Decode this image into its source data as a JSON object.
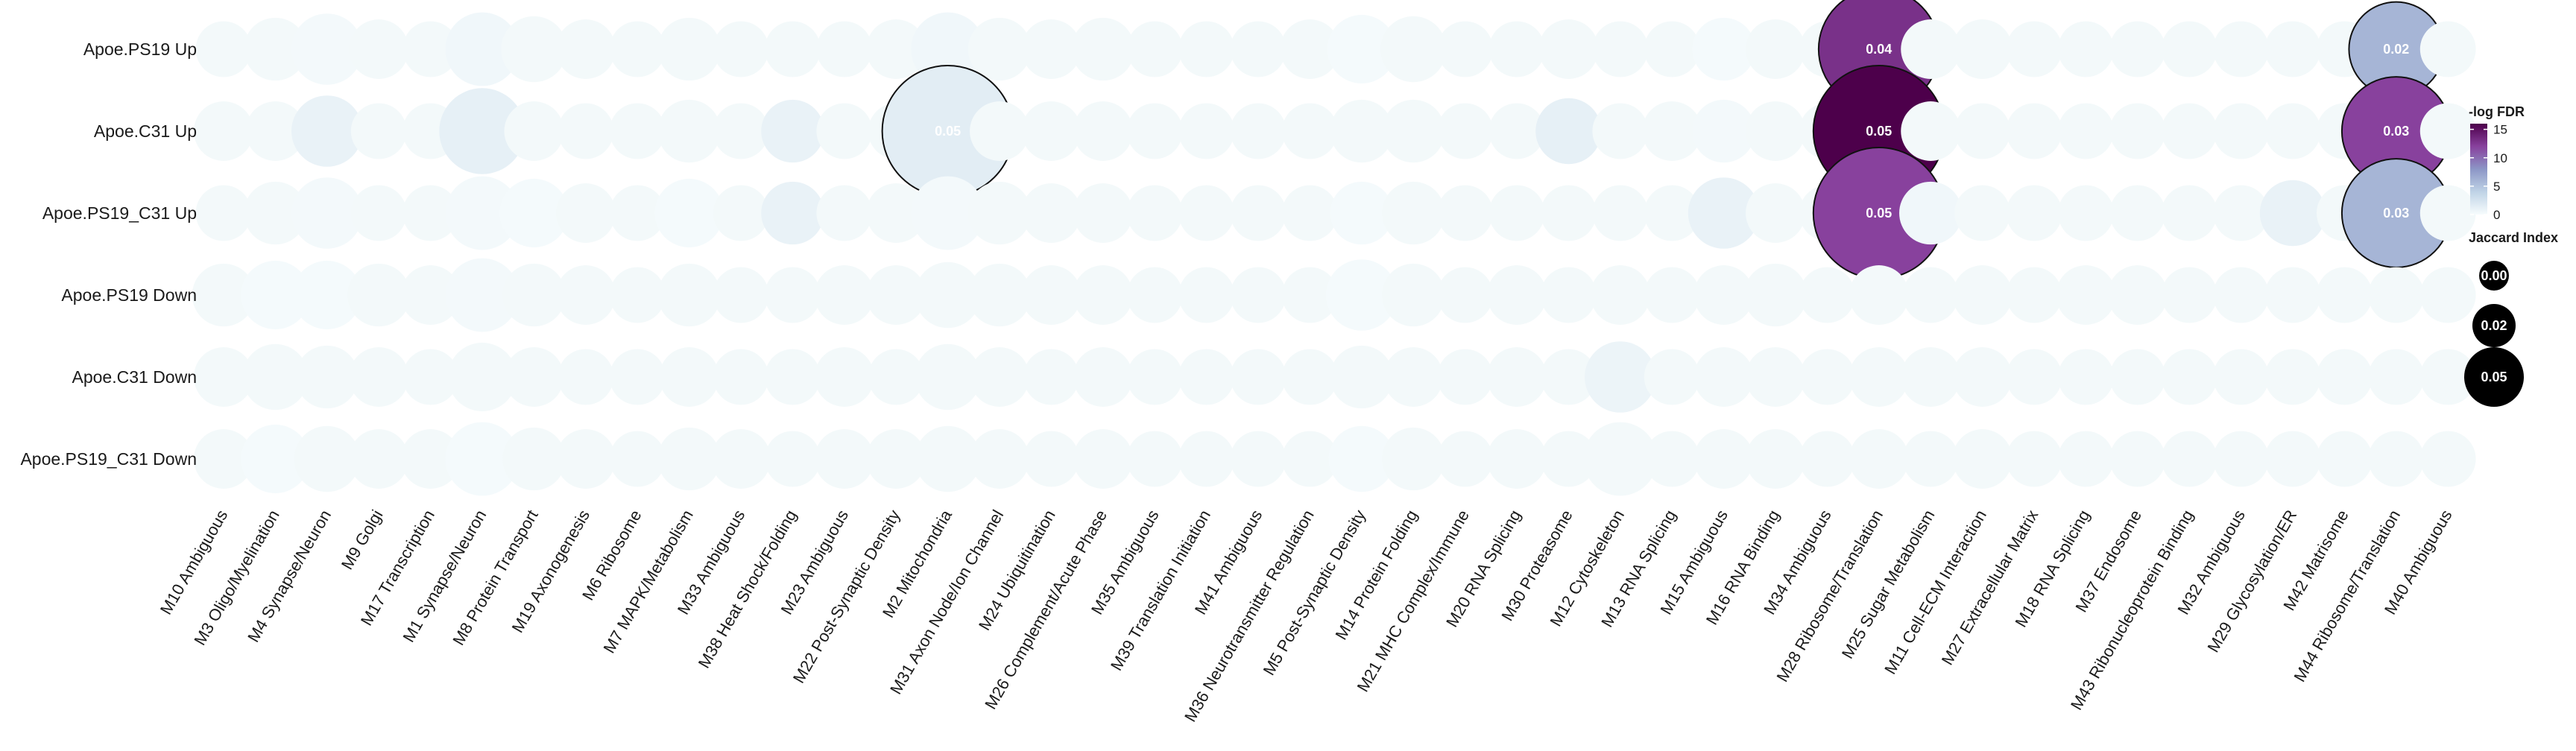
{
  "chart_data": {
    "type": "dot-matrix",
    "rows": [
      "Apoe.PS19 Up",
      "Apoe.C31 Up",
      "Apoe.PS19_C31 Up",
      "Apoe.PS19 Down",
      "Apoe.C31 Down",
      "Apoe.PS19_C31 Down"
    ],
    "columns": [
      "M10 Ambiguous",
      "M3 Oligo/Myelination",
      "M4 Synapse/Neuron",
      "M9 Golgi",
      "M17 Transcription",
      "M1 Synapse/Neuron",
      "M8 Protein Transport",
      "M19 Axonogenesis",
      "M6 Ribosome",
      "M7 MAPK/Metabolism",
      "M33 Ambiguous",
      "M38 Heat Shock/Folding",
      "M23 Ambiguous",
      "M22 Post-Synaptic Density",
      "M2 Mitochondria",
      "M31 Axon Node/Ion Channel",
      "M24 Ubiquitination",
      "M26 Complement/Acute Phase",
      "M35 Ambiguous",
      "M39 Translation Initiation",
      "M41 Ambiguous",
      "M36 Neurotransmitter Regulation",
      "M5 Post-Synaptic Density",
      "M14 Protein Folding",
      "M21 MHC Complex/Immune",
      "M20 RNA Splicing",
      "M30 Proteasome",
      "M12 Cytoskeleton",
      "M13 RNA Splicing",
      "M15 Ambiguous",
      "M16 RNA Binding",
      "M34 Ambiguous",
      "M28 Ribosome/Translation",
      "M25 Sugar Metabolism",
      "M11 Cell-ECM Interaction",
      "M27 Extracellular Matrix",
      "M18 RNA Splicing",
      "M37 Endosome",
      "M43 Ribonucleoprotein Binding",
      "M32 Ambiguous",
      "M29 Glycosylation/ER",
      "M42 Matrisome",
      "M44 Ribosome/Translation",
      "M40 Ambiguous"
    ],
    "jaccard": [
      [
        0.003,
        0.005,
        0.008,
        0.004,
        0.003,
        0.009,
        0.006,
        0.004,
        0.003,
        0.005,
        0.003,
        0.003,
        0.003,
        0.004,
        0.009,
        0.005,
        0.004,
        0.005,
        0.003,
        0.003,
        0.003,
        0.004,
        0.007,
        0.006,
        0.003,
        0.003,
        0.004,
        0.003,
        0.003,
        0.005,
        0.004,
        0.003,
        0.04,
        0.004,
        0.004,
        0.003,
        0.003,
        0.003,
        0.003,
        0.003,
        0.003,
        0.003,
        0.02,
        0.003
      ],
      [
        0.004,
        0.004,
        0.008,
        0.003,
        0.003,
        0.015,
        0.004,
        0.003,
        0.003,
        0.005,
        0.003,
        0.005,
        0.003,
        0.003,
        0.05,
        0.004,
        0.004,
        0.004,
        0.003,
        0.003,
        0.003,
        0.003,
        0.005,
        0.005,
        0.003,
        0.003,
        0.006,
        0.003,
        0.004,
        0.005,
        0.004,
        0.003,
        0.05,
        0.004,
        0.003,
        0.003,
        0.003,
        0.003,
        0.003,
        0.003,
        0.003,
        0.003,
        0.03,
        0.003
      ],
      [
        0.003,
        0.005,
        0.008,
        0.003,
        0.003,
        0.009,
        0.007,
        0.004,
        0.003,
        0.007,
        0.003,
        0.005,
        0.003,
        0.004,
        0.009,
        0.005,
        0.004,
        0.004,
        0.003,
        0.003,
        0.003,
        0.003,
        0.005,
        0.005,
        0.003,
        0.003,
        0.003,
        0.003,
        0.003,
        0.008,
        0.004,
        0.003,
        0.05,
        0.005,
        0.003,
        0.003,
        0.003,
        0.003,
        0.003,
        0.003,
        0.006,
        0.003,
        0.03,
        0.003
      ],
      [
        0.005,
        0.007,
        0.007,
        0.005,
        0.004,
        0.009,
        0.005,
        0.004,
        0.003,
        0.005,
        0.003,
        0.003,
        0.004,
        0.004,
        0.006,
        0.005,
        0.004,
        0.004,
        0.003,
        0.003,
        0.003,
        0.003,
        0.008,
        0.005,
        0.003,
        0.004,
        0.003,
        0.004,
        0.003,
        0.004,
        0.005,
        0.003,
        0.004,
        0.003,
        0.004,
        0.003,
        0.004,
        0.004,
        0.003,
        0.003,
        0.003,
        0.003,
        0.003,
        0.003
      ],
      [
        0.004,
        0.006,
        0.005,
        0.004,
        0.003,
        0.007,
        0.004,
        0.003,
        0.003,
        0.004,
        0.003,
        0.003,
        0.004,
        0.003,
        0.006,
        0.004,
        0.003,
        0.004,
        0.003,
        0.003,
        0.003,
        0.003,
        0.005,
        0.004,
        0.003,
        0.004,
        0.003,
        0.008,
        0.003,
        0.004,
        0.004,
        0.003,
        0.004,
        0.004,
        0.004,
        0.003,
        0.003,
        0.003,
        0.003,
        0.003,
        0.003,
        0.003,
        0.003,
        0.003
      ],
      [
        0.004,
        0.007,
        0.006,
        0.004,
        0.004,
        0.009,
        0.005,
        0.004,
        0.003,
        0.005,
        0.004,
        0.003,
        0.004,
        0.004,
        0.006,
        0.004,
        0.003,
        0.004,
        0.003,
        0.003,
        0.003,
        0.003,
        0.006,
        0.005,
        0.003,
        0.004,
        0.003,
        0.009,
        0.003,
        0.004,
        0.004,
        0.003,
        0.004,
        0.003,
        0.004,
        0.003,
        0.003,
        0.003,
        0.003,
        0.003,
        0.003,
        0.003,
        0.003,
        0.003
      ]
    ],
    "neg_log_fdr": [
      [
        0,
        0,
        0.3,
        0,
        0,
        0.5,
        0,
        0,
        0,
        0,
        0,
        0,
        0,
        0,
        0.5,
        0,
        0,
        0,
        0,
        0,
        0,
        0,
        0.2,
        0,
        0,
        0,
        0,
        0,
        0,
        0.2,
        0,
        0,
        13,
        0,
        0,
        0,
        0,
        0,
        0,
        0,
        0,
        0,
        6,
        0
      ],
      [
        0,
        0,
        1,
        0,
        0,
        1.2,
        0,
        0,
        0,
        0,
        0,
        1,
        0,
        0,
        1.5,
        0,
        0,
        0,
        0,
        0,
        0,
        0,
        0,
        0,
        0,
        0,
        1.2,
        0,
        0,
        0.3,
        0,
        0,
        16,
        0,
        0,
        0,
        0,
        0,
        0,
        0,
        0,
        0,
        12,
        0
      ],
      [
        0,
        0,
        0.3,
        0,
        0,
        0.3,
        0.2,
        0,
        0,
        0.2,
        0,
        1,
        0,
        0,
        0.3,
        0,
        0,
        0,
        0,
        0,
        0,
        0,
        0.2,
        0,
        0,
        0,
        0,
        0,
        0,
        1,
        0,
        0,
        12,
        0.5,
        0,
        0,
        0,
        0,
        0,
        0,
        1,
        0,
        6,
        0
      ],
      [
        0,
        0.2,
        0.2,
        0,
        0,
        0.3,
        0,
        0,
        0,
        0,
        0,
        0,
        0,
        0,
        0,
        0,
        0,
        0,
        0,
        0,
        0,
        0,
        0.2,
        0,
        0,
        0,
        0,
        0,
        0,
        0,
        0,
        0,
        0,
        0,
        0,
        0,
        0,
        0,
        0,
        0,
        0,
        0,
        0,
        0
      ],
      [
        0,
        0,
        0,
        0,
        0,
        0,
        0,
        0,
        0,
        0,
        0,
        0,
        0,
        0,
        0,
        0,
        0,
        0,
        0,
        0,
        0,
        0,
        0,
        0,
        0,
        0,
        0,
        0.8,
        0,
        0,
        0,
        0,
        0,
        0,
        0,
        0,
        0,
        0,
        0,
        0,
        0,
        0,
        0,
        0
      ],
      [
        0,
        0.2,
        0,
        0,
        0,
        0.2,
        0,
        0,
        0,
        0,
        0,
        0,
        0,
        0,
        0,
        0,
        0,
        0,
        0,
        0,
        0,
        0,
        0.2,
        0,
        0,
        0,
        0,
        0,
        0,
        0,
        0,
        0,
        0,
        0,
        0,
        0,
        0,
        0,
        0,
        0,
        0,
        0,
        0,
        0
      ]
    ],
    "labeled_cells": [
      {
        "row": 0,
        "col": 32,
        "label": "0.04"
      },
      {
        "row": 0,
        "col": 42,
        "label": "0.02"
      },
      {
        "row": 1,
        "col": 14,
        "label": "0.05"
      },
      {
        "row": 1,
        "col": 32,
        "label": "0.05"
      },
      {
        "row": 1,
        "col": 42,
        "label": "0.03"
      },
      {
        "row": 2,
        "col": 32,
        "label": "0.05"
      },
      {
        "row": 2,
        "col": 42,
        "label": "0.03"
      }
    ],
    "color_legend": {
      "title": "-log FDR",
      "ticks": [
        "15",
        "10",
        "5",
        "0"
      ],
      "tick_values": [
        15,
        10,
        5,
        0
      ],
      "range": [
        0,
        16
      ],
      "colors": [
        "#f7fcfd",
        "#bfd3e6",
        "#8c96c6",
        "#88419d",
        "#4d004b"
      ]
    },
    "size_legend": {
      "title": "Jaccard Index",
      "items": [
        {
          "value": 0.0,
          "label": "0.00"
        },
        {
          "value": 0.02,
          "label": "0.02"
        },
        {
          "value": 0.05,
          "label": "0.05"
        }
      ]
    },
    "legend_position": "right"
  }
}
